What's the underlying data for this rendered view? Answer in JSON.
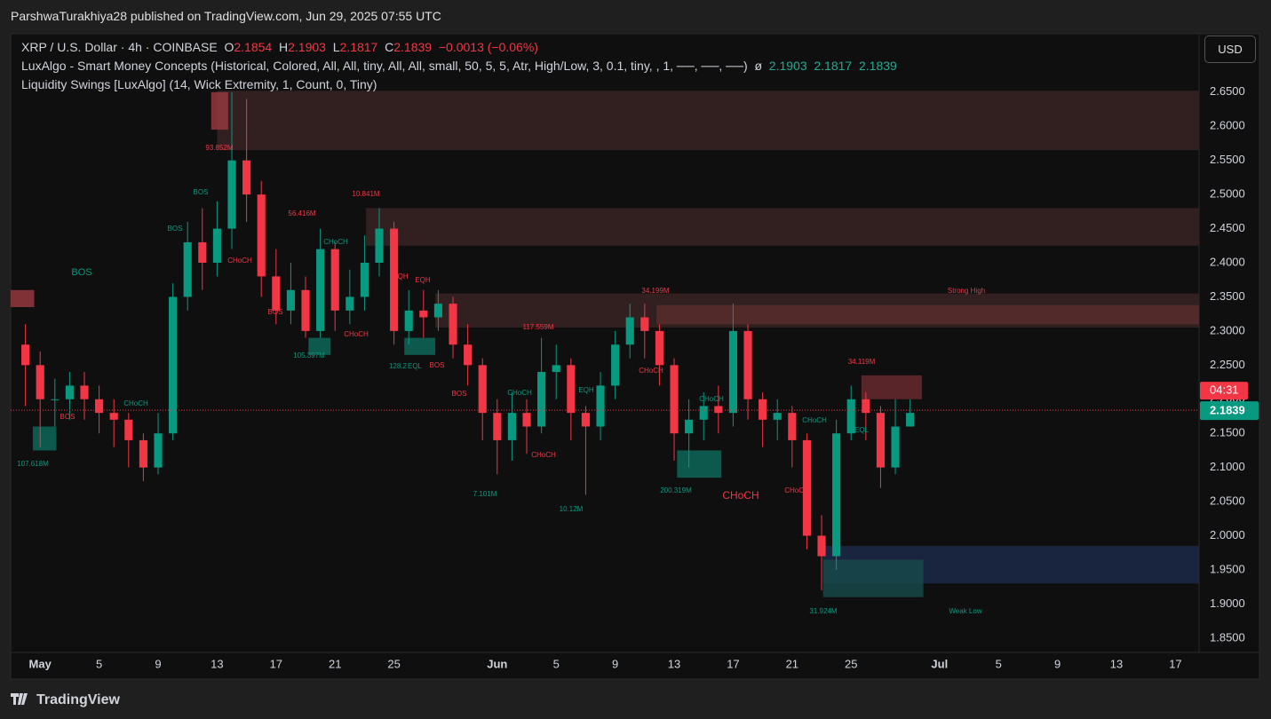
{
  "header": {
    "byline": "ParshwaTurakhiya28 published on TradingView.com, Jun 29, 2025 07:55 UTC"
  },
  "legend": {
    "symbol": "XRP / U.S. Dollar · 4h · COINBASE",
    "o_label": "O",
    "o": "2.1854",
    "h_label": "H",
    "h": "2.1903",
    "l_label": "L",
    "l": "2.1817",
    "c_label": "C",
    "c": "2.1839",
    "change": "−0.0013 (−0.06%)",
    "indicator1": "LuxAlgo - Smart Money Concepts (Historical, Colored, All, All, tiny, All, All, small, 50, 5, 5, Atr, High/Low, 3, 0.1, tiny, , 1, ──, ──, ──)",
    "indicator1_sym": "ø",
    "indicator1_values": "2.1903  2.1817  2.1839",
    "indicator2": "Liquidity Swings [LuxAlgo] (14, Wick Extremity, 1, Count, 0, Tiny)"
  },
  "currency_button": "USD",
  "footer": {
    "brand": "TradingView"
  },
  "chart_data": {
    "type": "candlestick",
    "up_color": "#089981",
    "down_color": "#f23645",
    "x": [
      -1,
      0,
      1,
      2,
      3,
      4,
      5,
      6,
      7,
      8,
      9,
      10,
      11,
      12,
      13,
      14,
      15,
      16,
      17,
      18,
      19,
      20,
      21,
      22,
      23,
      24,
      25,
      26,
      27,
      28,
      29,
      30,
      31,
      32,
      33,
      34,
      35,
      36,
      37,
      38,
      39,
      40,
      41,
      42,
      43,
      44,
      45,
      46,
      47,
      48,
      49,
      50,
      51,
      52,
      53,
      54,
      55,
      56,
      57,
      58,
      59
    ],
    "open": [
      2.28,
      2.25,
      2.2,
      2.2,
      2.22,
      2.2,
      2.18,
      2.17,
      2.14,
      2.1,
      2.15,
      2.35,
      2.43,
      2.4,
      2.45,
      2.55,
      2.5,
      2.38,
      2.33,
      2.36,
      2.3,
      2.42,
      2.33,
      2.35,
      2.4,
      2.45,
      2.3,
      2.33,
      2.32,
      2.34,
      2.28,
      2.25,
      2.18,
      2.14,
      2.18,
      2.16,
      2.24,
      2.25,
      2.18,
      2.16,
      2.22,
      2.28,
      2.32,
      2.3,
      2.25,
      2.15,
      2.17,
      2.19,
      2.18,
      2.3,
      2.2,
      2.17,
      2.18,
      2.14,
      2.0,
      1.97,
      2.15,
      2.2,
      2.18,
      2.1,
      2.16
    ],
    "high": [
      2.31,
      2.27,
      2.23,
      2.24,
      2.24,
      2.22,
      2.2,
      2.18,
      2.15,
      2.18,
      2.37,
      2.46,
      2.48,
      2.49,
      2.65,
      2.64,
      2.52,
      2.42,
      2.4,
      2.38,
      2.45,
      2.43,
      2.39,
      2.44,
      2.48,
      2.46,
      2.36,
      2.36,
      2.36,
      2.35,
      2.31,
      2.26,
      2.2,
      2.21,
      2.2,
      2.29,
      2.28,
      2.26,
      2.19,
      2.24,
      2.3,
      2.34,
      2.34,
      2.31,
      2.26,
      2.2,
      2.21,
      2.22,
      2.34,
      2.31,
      2.21,
      2.2,
      2.19,
      2.15,
      2.03,
      2.17,
      2.22,
      2.21,
      2.19,
      2.2,
      2.2
    ],
    "low": [
      2.19,
      2.13,
      2.16,
      2.17,
      2.17,
      2.15,
      2.13,
      2.1,
      2.08,
      2.09,
      2.14,
      2.33,
      2.36,
      2.38,
      2.42,
      2.46,
      2.35,
      2.31,
      2.31,
      2.29,
      2.29,
      2.3,
      2.31,
      2.33,
      2.38,
      2.28,
      2.28,
      2.29,
      2.3,
      2.26,
      2.22,
      2.14,
      2.09,
      2.11,
      2.12,
      2.15,
      2.2,
      2.14,
      2.06,
      2.14,
      2.2,
      2.26,
      2.26,
      2.22,
      2.11,
      2.1,
      2.14,
      2.15,
      2.16,
      2.17,
      2.13,
      2.14,
      2.1,
      1.98,
      1.92,
      1.95,
      2.14,
      2.14,
      2.07,
      2.09,
      2.16
    ],
    "close": [
      2.25,
      2.2,
      2.2,
      2.22,
      2.2,
      2.18,
      2.17,
      2.14,
      2.1,
      2.15,
      2.35,
      2.43,
      2.4,
      2.45,
      2.55,
      2.5,
      2.38,
      2.33,
      2.36,
      2.3,
      2.42,
      2.33,
      2.35,
      2.4,
      2.45,
      2.3,
      2.33,
      2.32,
      2.34,
      2.28,
      2.25,
      2.18,
      2.14,
      2.18,
      2.16,
      2.24,
      2.25,
      2.18,
      2.16,
      2.22,
      2.28,
      2.32,
      2.3,
      2.25,
      2.15,
      2.17,
      2.19,
      2.18,
      2.3,
      2.2,
      2.17,
      2.18,
      2.14,
      2.0,
      1.97,
      2.15,
      2.2,
      2.18,
      2.1,
      2.16,
      2.18
    ],
    "xlim": [
      -2,
      78.6
    ],
    "xticks": [
      {
        "value": 0,
        "label": "May"
      },
      {
        "value": 4,
        "label": "5"
      },
      {
        "value": 8,
        "label": "9"
      },
      {
        "value": 12,
        "label": "13"
      },
      {
        "value": 16,
        "label": "17"
      },
      {
        "value": 20,
        "label": "21"
      },
      {
        "value": 24,
        "label": "25"
      },
      {
        "value": 31,
        "label": "Jun"
      },
      {
        "value": 35,
        "label": "5"
      },
      {
        "value": 39,
        "label": "9"
      },
      {
        "value": 43,
        "label": "13"
      },
      {
        "value": 47,
        "label": "17"
      },
      {
        "value": 51,
        "label": "21"
      },
      {
        "value": 55,
        "label": "25"
      },
      {
        "value": 61,
        "label": "Jul"
      },
      {
        "value": 65,
        "label": "5"
      },
      {
        "value": 69,
        "label": "9"
      },
      {
        "value": 73,
        "label": "13"
      },
      {
        "value": 77,
        "label": "17"
      }
    ],
    "ylim": [
      1.829,
      2.733
    ],
    "yticks": [
      {
        "value": 2.65,
        "label": "2.6500"
      },
      {
        "value": 2.6,
        "label": "2.6000"
      },
      {
        "value": 2.55,
        "label": "2.5500"
      },
      {
        "value": 2.5,
        "label": "2.5000"
      },
      {
        "value": 2.45,
        "label": "2.4500"
      },
      {
        "value": 2.4,
        "label": "2.4000"
      },
      {
        "value": 2.35,
        "label": "2.3500"
      },
      {
        "value": 2.3,
        "label": "2.3000"
      },
      {
        "value": 2.25,
        "label": "2.2500"
      },
      {
        "value": 2.2,
        "label": "2.2000"
      },
      {
        "value": 2.15,
        "label": "2.1500"
      },
      {
        "value": 2.1,
        "label": "2.1000"
      },
      {
        "value": 2.05,
        "label": "2.0500"
      },
      {
        "value": 2.0,
        "label": "2.0000"
      },
      {
        "value": 1.95,
        "label": "1.9500"
      },
      {
        "value": 1.9,
        "label": "1.9000"
      },
      {
        "value": 1.85,
        "label": "1.8500"
      }
    ],
    "last_price": 2.1839,
    "countdown": "04:31",
    "zones": [
      {
        "from": 12.0,
        "to": 78.6,
        "top": 2.652,
        "bottom": 2.565,
        "color": "#3b2424"
      },
      {
        "from": 22.1,
        "to": 78.6,
        "top": 2.48,
        "bottom": 2.425,
        "color": "#3b2424"
      },
      {
        "from": 26.8,
        "to": 78.6,
        "top": 2.355,
        "bottom": 2.305,
        "color": "#3b2424"
      },
      {
        "from": 41.8,
        "to": 78.6,
        "top": 2.338,
        "bottom": 2.31,
        "color": "#5a2d2d"
      },
      {
        "from": 53.1,
        "to": 78.6,
        "top": 1.985,
        "bottom": 1.93,
        "color": "#1c2b4a"
      },
      {
        "from": -2,
        "to": -0.4,
        "top": 2.36,
        "bottom": 2.335,
        "color": "#9c3a3f"
      },
      {
        "from": -0.5,
        "to": 1.1,
        "top": 2.16,
        "bottom": 2.125,
        "color": "#0e6b5c"
      },
      {
        "from": 11.6,
        "to": 12.75,
        "top": 2.65,
        "bottom": 2.595,
        "color": "#9c3a3f"
      },
      {
        "from": 18.2,
        "to": 19.7,
        "top": 2.29,
        "bottom": 2.265,
        "color": "#0e6b5c"
      },
      {
        "from": 24.7,
        "to": 26.8,
        "top": 2.29,
        "bottom": 2.265,
        "color": "#0e6b5c"
      },
      {
        "from": 43.2,
        "to": 46.2,
        "top": 2.125,
        "bottom": 2.085,
        "color": "#0e6b5c"
      },
      {
        "from": 55.7,
        "to": 59.8,
        "top": 2.235,
        "bottom": 2.2,
        "color": "#6b2a2e"
      },
      {
        "from": 53.1,
        "to": 59.9,
        "top": 1.965,
        "bottom": 1.91,
        "color": "#164a4a"
      }
    ],
    "annotations": [
      {
        "text": "BOS",
        "color": "#089981"
      },
      {
        "text": "107.618M",
        "color": "#089981"
      },
      {
        "text": "BOS",
        "color": "#f23645"
      },
      {
        "text": "CHoCH",
        "color": "#089981"
      },
      {
        "text": "BOS",
        "color": "#089981"
      },
      {
        "text": "BOS",
        "color": "#089981"
      },
      {
        "text": "93.852M",
        "color": "#f23645"
      },
      {
        "text": "CHoCH",
        "color": "#f23645"
      },
      {
        "text": "56.416M",
        "color": "#f23645"
      },
      {
        "text": "CHoCH",
        "color": "#089981"
      },
      {
        "text": "10.841M",
        "color": "#f23645"
      },
      {
        "text": "BOS",
        "color": "#f23645"
      },
      {
        "text": "CHoCH",
        "color": "#f23645"
      },
      {
        "text": "105.397M",
        "color": "#089981"
      },
      {
        "text": "EQH",
        "color": "#f23645"
      },
      {
        "text": "EQH",
        "color": "#f23645"
      },
      {
        "text": "128.2",
        "color": "#089981"
      },
      {
        "text": "EQL",
        "color": "#089981"
      },
      {
        "text": "BOS",
        "color": "#f23645"
      },
      {
        "text": "BOS",
        "color": "#f23645"
      },
      {
        "text": "117.559M",
        "color": "#f23645"
      },
      {
        "text": "CHoCH",
        "color": "#089981"
      },
      {
        "text": "CHoCH",
        "color": "#f23645"
      },
      {
        "text": "EQH",
        "color": "#089981"
      },
      {
        "text": "7.101M",
        "color": "#089981"
      },
      {
        "text": "10.12M",
        "color": "#089981"
      },
      {
        "text": "34.199M",
        "color": "#f23645"
      },
      {
        "text": "CHoCH",
        "color": "#f23645"
      },
      {
        "text": "CHoCH",
        "color": "#089981"
      },
      {
        "text": "200.319M",
        "color": "#089981"
      },
      {
        "text": "CHoCH",
        "color": "#f23645"
      },
      {
        "text": "CHoCH",
        "color": "#f23645"
      },
      {
        "text": "CHoCH",
        "color": "#089981"
      },
      {
        "text": "34.119M",
        "color": "#f23645"
      },
      {
        "text": "EQL",
        "color": "#089981"
      },
      {
        "text": "Strong High",
        "color": "#f23645"
      },
      {
        "text": "31.924M",
        "color": "#089981"
      },
      {
        "text": "Weak Low",
        "color": "#089981"
      }
    ]
  }
}
